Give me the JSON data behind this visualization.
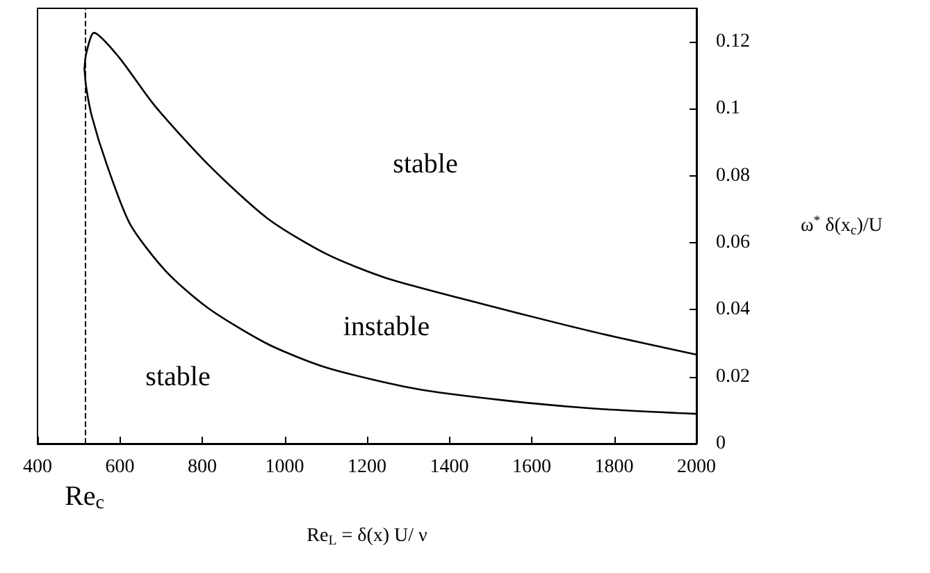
{
  "chart_data": {
    "type": "line",
    "xlabel": "Re$_{L}$ = δ(x) U/ ν",
    "ylabel": "ω$^{*}$ δ(x$_{c}$)/U",
    "xlim": [
      400,
      2000
    ],
    "xticks": [
      400,
      600,
      800,
      1000,
      1200,
      1400,
      1600,
      1800,
      2000
    ],
    "ylim": [
      0,
      0.13
    ],
    "yticks": [
      0,
      0.02,
      0.04,
      0.06,
      0.08,
      0.1,
      0.12
    ],
    "series": [
      {
        "color": "#000000",
        "x": [
          514,
          518,
          537,
          597,
          684,
          814,
          958,
          1102,
          1246,
          1491,
          1750,
          2000
        ],
        "values": [
          0.112,
          0.1164,
          0.1227,
          0.1155,
          0.101,
          0.0834,
          0.0673,
          0.0566,
          0.0495,
          0.0414,
          0.0334,
          0.0266
        ]
      },
      {
        "color": "#000000",
        "x": [
          514,
          518,
          532,
          568,
          625,
          713,
          814,
          958,
          1102,
          1318,
          1535,
          1750,
          2000
        ],
        "values": [
          0.112,
          0.1066,
          0.0977,
          0.0834,
          0.0655,
          0.0513,
          0.0405,
          0.0298,
          0.0227,
          0.0164,
          0.0129,
          0.0105,
          0.0089
        ]
      }
    ],
    "ref_lines": [
      {
        "axis": "x",
        "value": 514,
        "label": "Re$_{c}$",
        "line_style": "dashed",
        "color": "#000000"
      }
    ],
    "annotations": [
      "stable",
      "instable",
      "stable"
    ],
    "grid": false,
    "marker": "none",
    "line_style": "solid"
  }
}
